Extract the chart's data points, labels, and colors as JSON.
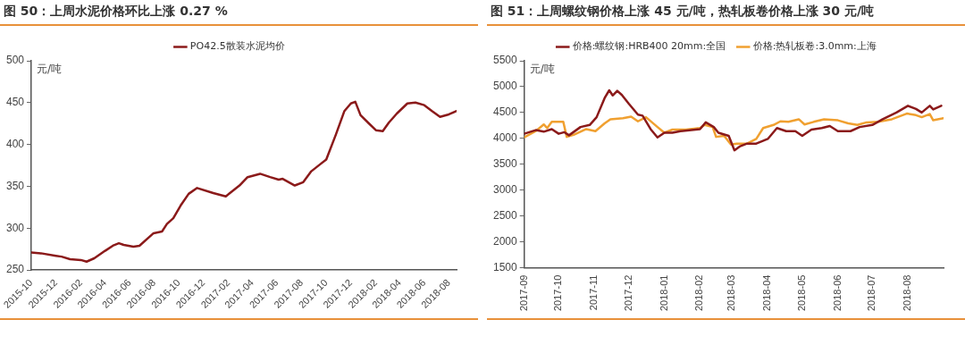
{
  "chart_data": [
    {
      "type": "line",
      "title": "图 50：上周水泥价格环比上涨 0.27 %",
      "ylabel": "元/吨",
      "legend": "top",
      "grid": false,
      "ylim": [
        250,
        500
      ],
      "yticks": [
        250,
        300,
        350,
        400,
        450,
        500
      ],
      "xlim": [
        "2015-10-01",
        "2018-08-20"
      ],
      "xticks": [
        "2015-10",
        "2015-12",
        "2016-02",
        "2016-04",
        "2016-06",
        "2016-08",
        "2016-10",
        "2016-12",
        "2017-02",
        "2017-04",
        "2017-06",
        "2017-08",
        "2017-10",
        "2017-12",
        "2018-02",
        "2018-04",
        "2018-06",
        "2018-08"
      ],
      "series": [
        {
          "name": "PO42.5散装水泥均价",
          "color": "#8b1a1a",
          "x": [
            "2015-10-01",
            "2015-10-25",
            "2015-12-01",
            "2015-12-15",
            "2016-01-05",
            "2016-02-01",
            "2016-02-15",
            "2016-03-05",
            "2016-04-01",
            "2016-04-20",
            "2016-05-05",
            "2016-05-17",
            "2016-06-10",
            "2016-06-25",
            "2016-07-30",
            "2016-08-20",
            "2016-09-01",
            "2016-09-17",
            "2016-10-05",
            "2016-10-25",
            "2016-11-15",
            "2016-12-25",
            "2017-01-25",
            "2017-02-28",
            "2017-03-20",
            "2017-04-20",
            "2017-05-15",
            "2017-06-05",
            "2017-06-15",
            "2017-07-15",
            "2017-08-05",
            "2017-08-25",
            "2017-09-15",
            "2017-10-01",
            "2017-10-25",
            "2017-11-15",
            "2017-12-01",
            "2017-12-12",
            "2017-12-25",
            "2018-01-15",
            "2018-02-01",
            "2018-02-18",
            "2018-03-05",
            "2018-03-25",
            "2018-04-20",
            "2018-05-10",
            "2018-06-01",
            "2018-06-20",
            "2018-07-10",
            "2018-08-01",
            "2018-08-20"
          ],
          "values": [
            271,
            270,
            267,
            266,
            263,
            262,
            260,
            264,
            273,
            279,
            282,
            280,
            278,
            279,
            294,
            296,
            305,
            312,
            327,
            341,
            348,
            342,
            338,
            351,
            361,
            365,
            361,
            358,
            359,
            351,
            355,
            368,
            376,
            382,
            412,
            440,
            449,
            451,
            435,
            425,
            417,
            416,
            426,
            437,
            449,
            450,
            447,
            440,
            433,
            436,
            440
          ]
        }
      ]
    },
    {
      "type": "line",
      "title": "图 51：上周螺纹钢价格上涨 45 元/吨，热轧板卷价格上涨 30 元/吨",
      "ylabel": "元/吨",
      "legend": "top",
      "grid": false,
      "ylim": [
        1500,
        5500
      ],
      "yticks": [
        1500,
        2000,
        2500,
        3000,
        3500,
        4000,
        4500,
        5000,
        5500
      ],
      "xlim": [
        "2017-09-01",
        "2018-09-01"
      ],
      "xticks": [
        "2017-09",
        "2017-10",
        "2017-11",
        "2017-12",
        "2018-01",
        "2018-02",
        "2018-03",
        "2018-04",
        "2018-05",
        "2018-06",
        "2018-07",
        "2018-08"
      ],
      "series": [
        {
          "name": "价格:螺纹钢:HRB400 20mm:全国",
          "color": "#8b1a1a",
          "x": [
            "2017-09-01",
            "2017-09-11",
            "2017-09-18",
            "2017-09-25",
            "2017-10-01",
            "2017-10-06",
            "2017-10-10",
            "2017-10-20",
            "2017-10-28",
            "2017-11-03",
            "2017-11-10",
            "2017-11-14",
            "2017-11-17",
            "2017-11-21",
            "2017-11-25",
            "2017-12-01",
            "2017-12-09",
            "2017-12-13",
            "2017-12-20",
            "2017-12-26",
            "2018-01-01",
            "2018-01-08",
            "2018-01-15",
            "2018-02-01",
            "2018-02-06",
            "2018-02-13",
            "2018-02-17",
            "2018-02-26",
            "2018-03-03",
            "2018-03-08",
            "2018-03-14",
            "2018-03-22",
            "2018-04-01",
            "2018-04-09",
            "2018-04-17",
            "2018-04-25",
            "2018-05-01",
            "2018-05-09",
            "2018-05-18",
            "2018-05-25",
            "2018-06-01",
            "2018-06-12",
            "2018-06-20",
            "2018-07-01",
            "2018-07-10",
            "2018-07-22",
            "2018-08-01",
            "2018-08-08",
            "2018-08-13",
            "2018-08-20",
            "2018-08-23",
            "2018-08-30"
          ],
          "values": [
            4090,
            4160,
            4130,
            4180,
            4090,
            4120,
            4060,
            4220,
            4260,
            4410,
            4780,
            4930,
            4830,
            4920,
            4840,
            4670,
            4460,
            4440,
            4180,
            4020,
            4110,
            4110,
            4140,
            4180,
            4310,
            4220,
            4110,
            4050,
            3770,
            3850,
            3900,
            3900,
            3990,
            4200,
            4140,
            4140,
            4050,
            4170,
            4200,
            4240,
            4140,
            4140,
            4220,
            4260,
            4370,
            4500,
            4630,
            4570,
            4500,
            4630,
            4560,
            4630
          ]
        },
        {
          "name": "价格:热轧板卷:3.0mm:上海",
          "color": "#f0a030",
          "x": [
            "2017-09-01",
            "2017-09-11",
            "2017-09-18",
            "2017-09-21",
            "2017-09-25",
            "2017-10-01",
            "2017-10-05",
            "2017-10-08",
            "2017-10-14",
            "2017-10-25",
            "2017-11-02",
            "2017-11-10",
            "2017-11-15",
            "2017-11-26",
            "2017-12-03",
            "2017-12-09",
            "2017-12-16",
            "2017-12-26",
            "2018-01-01",
            "2018-01-08",
            "2018-01-20",
            "2018-02-01",
            "2018-02-05",
            "2018-02-12",
            "2018-02-15",
            "2018-02-22",
            "2018-02-28",
            "2018-03-05",
            "2018-03-14",
            "2018-03-22",
            "2018-03-28",
            "2018-04-06",
            "2018-04-12",
            "2018-04-19",
            "2018-04-28",
            "2018-05-03",
            "2018-05-11",
            "2018-05-20",
            "2018-06-01",
            "2018-06-10",
            "2018-06-18",
            "2018-06-26",
            "2018-07-06",
            "2018-07-18",
            "2018-07-31",
            "2018-08-08",
            "2018-08-13",
            "2018-08-20",
            "2018-08-23",
            "2018-09-01"
          ],
          "values": [
            4020,
            4140,
            4270,
            4200,
            4320,
            4320,
            4320,
            4030,
            4070,
            4180,
            4140,
            4290,
            4370,
            4390,
            4420,
            4330,
            4410,
            4220,
            4110,
            4170,
            4170,
            4200,
            4260,
            4220,
            4030,
            4050,
            3880,
            3900,
            3900,
            3990,
            4200,
            4260,
            4330,
            4320,
            4370,
            4270,
            4320,
            4370,
            4350,
            4290,
            4260,
            4310,
            4320,
            4370,
            4480,
            4450,
            4410,
            4470,
            4350,
            4390
          ]
        }
      ]
    }
  ]
}
